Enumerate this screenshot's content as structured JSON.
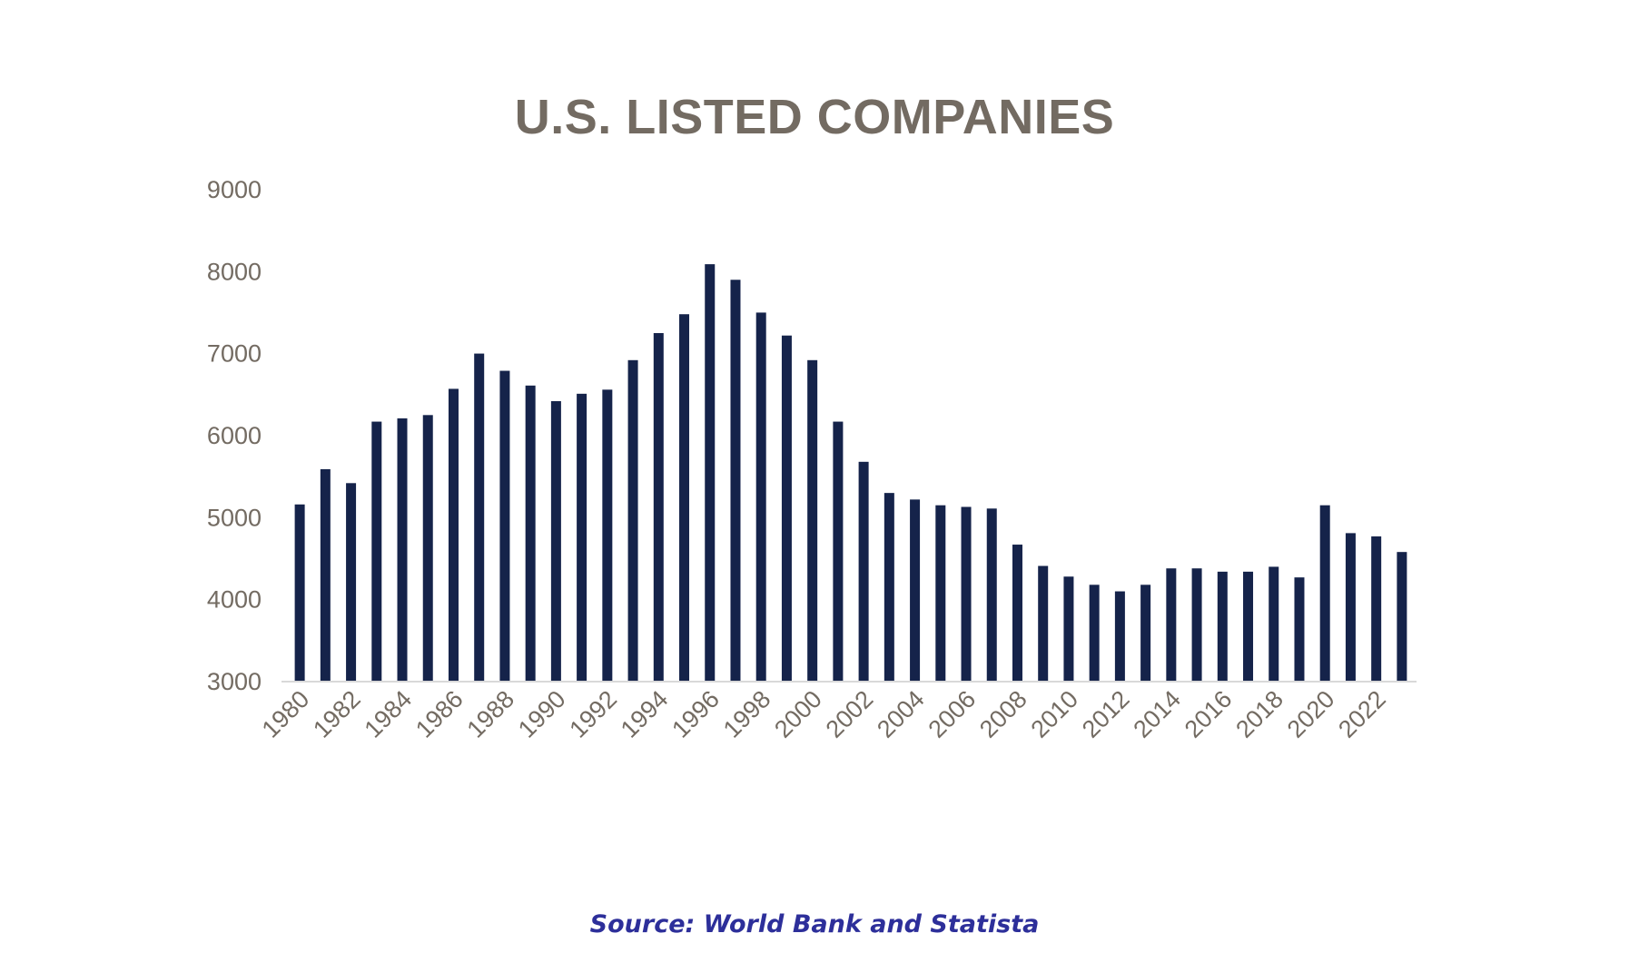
{
  "chart_data": {
    "type": "bar",
    "title": "U.S. LISTED COMPANIES",
    "xlabel": "",
    "ylabel": "",
    "ylim": [
      3000,
      9000
    ],
    "yticks": [
      3000,
      4000,
      5000,
      6000,
      7000,
      8000,
      9000
    ],
    "grid": false,
    "legend": "none",
    "bar_color": "#15234a",
    "categories": [
      "1980",
      "1981",
      "1982",
      "1983",
      "1984",
      "1985",
      "1986",
      "1987",
      "1988",
      "1989",
      "1990",
      "1991",
      "1992",
      "1993",
      "1994",
      "1995",
      "1996",
      "1997",
      "1998",
      "1999",
      "2000",
      "2001",
      "2002",
      "2003",
      "2004",
      "2005",
      "2006",
      "2007",
      "2008",
      "2009",
      "2010",
      "2011",
      "2012",
      "2013",
      "2014",
      "2015",
      "2016",
      "2017",
      "2018",
      "2019",
      "2020",
      "2021",
      "2022",
      "2023"
    ],
    "xtick_labels": [
      "1980",
      "1982",
      "1984",
      "1986",
      "1988",
      "1990",
      "1992",
      "1994",
      "1996",
      "1998",
      "2000",
      "2002",
      "2004",
      "2006",
      "2008",
      "2010",
      "2012",
      "2014",
      "2016",
      "2018",
      "2020",
      "2022"
    ],
    "values": [
      5150,
      5580,
      5410,
      6160,
      6200,
      6240,
      6560,
      6990,
      6780,
      6600,
      6410,
      6500,
      6550,
      6910,
      7240,
      7470,
      8080,
      7890,
      7490,
      7210,
      6910,
      6160,
      5670,
      5290,
      5210,
      5140,
      5120,
      5100,
      4660,
      4400,
      4270,
      4170,
      4090,
      4170,
      4370,
      4370,
      4330,
      4330,
      4390,
      4260,
      5140,
      4800,
      4760,
      4570
    ]
  },
  "source": "Source: World Bank and Statista"
}
